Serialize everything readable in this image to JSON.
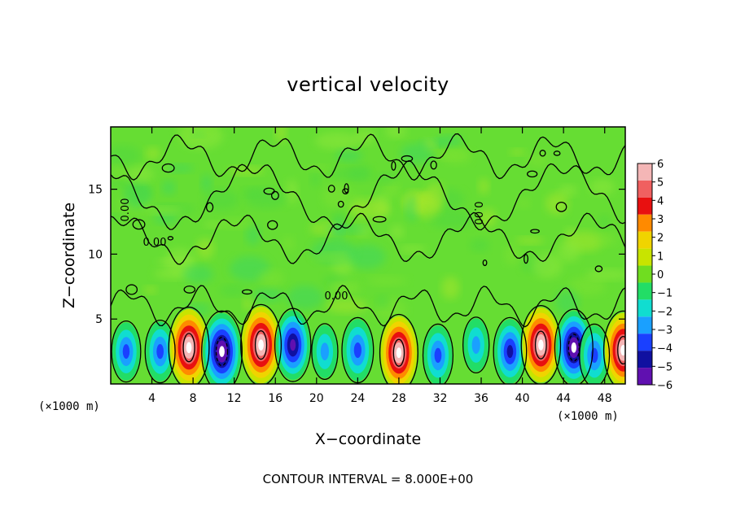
{
  "chart_data": {
    "type": "heatmap",
    "title": "vertical velocity",
    "xlabel": "X−coordinate",
    "ylabel": "Z−coordinate",
    "x_unit_label": "(×1000 m)",
    "y_unit_label": "(×1000 m)",
    "xlim": [
      0,
      50
    ],
    "ylim": [
      0,
      19.8
    ],
    "x_ticks": [
      4,
      8,
      12,
      16,
      20,
      24,
      28,
      32,
      36,
      40,
      44,
      48
    ],
    "y_ticks": [
      5,
      10,
      15
    ],
    "colorbar": {
      "ticks": [
        6,
        5,
        4,
        3,
        2,
        1,
        0,
        -1,
        -2,
        -3,
        -4,
        -5,
        -6
      ],
      "tick_labels": [
        "6",
        "5",
        "4",
        "3",
        "2",
        "1",
        "0",
        "−1",
        "−2",
        "−3",
        "−4",
        "−5",
        "−6"
      ],
      "colors": [
        "#f4b6b6",
        "#f06060",
        "#e81010",
        "#ff8a00",
        "#f0d400",
        "#c8e400",
        "#70dd20",
        "#22dd66",
        "#10ddd0",
        "#1aa0ff",
        "#1a40ff",
        "#1010a0",
        "#6010b0"
      ]
    },
    "contour_labels": [
      "0.00",
      "0.00",
      "0.00",
      "0.00"
    ],
    "contour_interval_text": "CONTOUR INTERVAL = 8.000E+00",
    "wave_cells": [
      {
        "x": 1.5,
        "z": 2.5,
        "value": -3.2
      },
      {
        "x": 4.8,
        "z": 2.5,
        "value": -3.5
      },
      {
        "x": 7.6,
        "z": 2.8,
        "value": 7.0
      },
      {
        "x": 10.8,
        "z": 2.5,
        "value": -7.0
      },
      {
        "x": 14.6,
        "z": 3.0,
        "value": 7.0
      },
      {
        "x": 17.7,
        "z": 3.0,
        "value": -5.5
      },
      {
        "x": 20.8,
        "z": 2.5,
        "value": -2.2
      },
      {
        "x": 24.0,
        "z": 2.6,
        "value": -4.0
      },
      {
        "x": 28.0,
        "z": 2.4,
        "value": 6.2
      },
      {
        "x": 31.8,
        "z": 2.2,
        "value": -3.5
      },
      {
        "x": 35.5,
        "z": 3.0,
        "value": -2.2
      },
      {
        "x": 38.8,
        "z": 2.5,
        "value": -4.5
      },
      {
        "x": 41.8,
        "z": 3.0,
        "value": 6.6
      },
      {
        "x": 45.0,
        "z": 2.8,
        "value": -6.2
      },
      {
        "x": 47.0,
        "z": 2.2,
        "value": -3.5
      },
      {
        "x": 49.8,
        "z": 2.6,
        "value": 6.5
      }
    ]
  }
}
